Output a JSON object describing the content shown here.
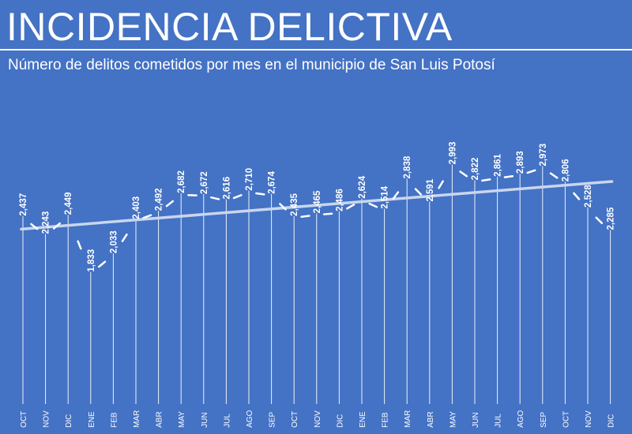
{
  "header": {
    "title": "INCIDENCIA DELICTIVA",
    "subtitle": "Número de delitos cometidos por mes en el municipio de San Luis Potosí"
  },
  "colors": {
    "background": "#4472c4",
    "text": "#ffffff",
    "drop_lines": "#ffffff",
    "trendline": "#c9d6ee"
  },
  "chart_data": {
    "type": "line",
    "title": "INCIDENCIA DELICTIVA",
    "subtitle": "Número de delitos cometidos por mes en el municipio de San Luis Potosí",
    "categories": [
      "OCT",
      "NOV",
      "DIC",
      "ENE",
      "FEB",
      "MAR",
      "ABR",
      "MAY",
      "JUN",
      "JUL",
      "AGO",
      "SEP",
      "OCT",
      "NOV",
      "DIC",
      "ENE",
      "FEB",
      "MAR",
      "ABR",
      "MAY",
      "JUN",
      "JUL",
      "AGO",
      "SEP",
      "OCT",
      "NOV",
      "DIC"
    ],
    "series": [
      {
        "values": [
          2437,
          2243,
          2449,
          1833,
          2033,
          2403,
          2492,
          2682,
          2672,
          2616,
          2710,
          2674,
          2435,
          2465,
          2486,
          2624,
          2514,
          2838,
          2591,
          2993,
          2822,
          2861,
          2893,
          2973,
          2806,
          2528,
          2285
        ]
      }
    ],
    "data_labels": [
      "2,437",
      "2,243",
      "2,449",
      "1,833",
      "2,033",
      "2,403",
      "2,492",
      "2,682",
      "2,672",
      "2,616",
      "2,710",
      "2,674",
      "2,435",
      "2,465",
      "2,486",
      "2,624",
      "2,514",
      "2,838",
      "2,591",
      "2,993",
      "2,822",
      "2,861",
      "2,893",
      "2,973",
      "2,806",
      "2,528",
      "2,285"
    ],
    "trendline": {
      "type": "linear",
      "shown": true
    },
    "drop_lines": true,
    "y_axis_visible": false,
    "grid": false,
    "legend": "none",
    "ylim": [
      0,
      3400
    ]
  }
}
